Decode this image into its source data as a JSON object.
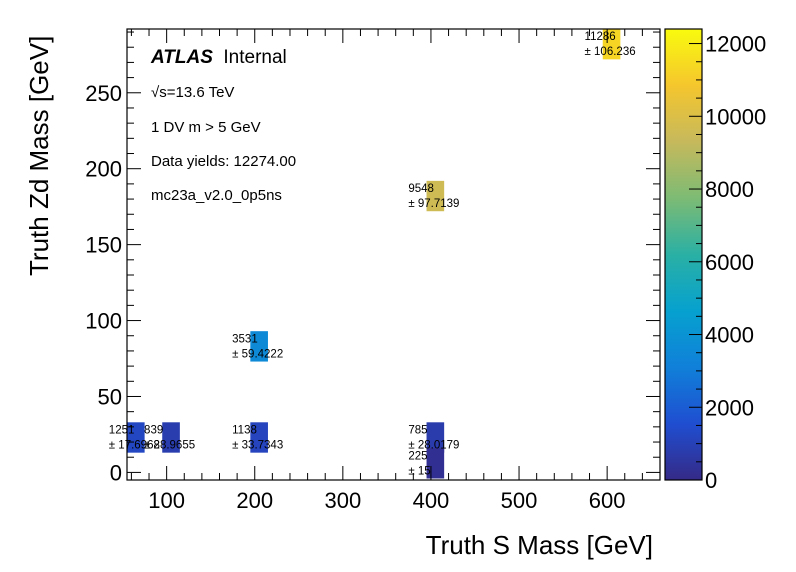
{
  "chart_data": {
    "type": "heatmap",
    "xlabel": "Truth S Mass [GeV]",
    "ylabel": "Truth Zd Mass [GeV]",
    "xlim": [
      55,
      660
    ],
    "ylim": [
      -5,
      292
    ],
    "xticks": [
      100,
      200,
      300,
      400,
      500,
      600
    ],
    "yticks": [
      0,
      50,
      100,
      150,
      200,
      250
    ],
    "colorbar": {
      "min": 0,
      "max": 12400,
      "ticks": [
        0,
        2000,
        4000,
        6000,
        8000,
        10000,
        12000
      ]
    },
    "bin_size": {
      "x": 20,
      "y": 20
    },
    "cells": [
      {
        "x": 65,
        "y": 23,
        "value": "1251",
        "error": "± 17.6968",
        "z": 1251
      },
      {
        "x": 105,
        "y": 23,
        "value": "839",
        "error": "± 28.9655",
        "z": 839
      },
      {
        "x": 205,
        "y": 23,
        "value": "1138",
        "error": "± 33.7343",
        "z": 1138
      },
      {
        "x": 405,
        "y": 23,
        "value": "785",
        "error": "± 28.0179",
        "z": 785
      },
      {
        "x": 405,
        "y": 6,
        "value": "225",
        "error": "± 15",
        "z": 225
      },
      {
        "x": 205,
        "y": 83,
        "value": "3531",
        "error": "± 59.4222",
        "z": 3531
      },
      {
        "x": 405,
        "y": 182,
        "value": "9548",
        "error": "± 97.7139",
        "z": 9548
      },
      {
        "x": 605,
        "y": 282,
        "value": "11286",
        "error": "± 106.236",
        "z": 11286
      }
    ]
  },
  "annotations": {
    "atlas": "ATLAS",
    "internal": "Internal",
    "energy_sqrt": "√s",
    "energy_rest": "=13.6 TeV",
    "selection": "1 DV m > 5 GeV",
    "yields": "Data yields: 12274.00",
    "sample": "mc23a_v2.0_0p5ns"
  },
  "colors": {
    "palette": [
      "#352a87",
      "#1f4ed1",
      "#1080d9",
      "#06a1cf",
      "#2ab0a4",
      "#7dbb74",
      "#c6b95c",
      "#f5c62d",
      "#f9fb0e"
    ]
  }
}
